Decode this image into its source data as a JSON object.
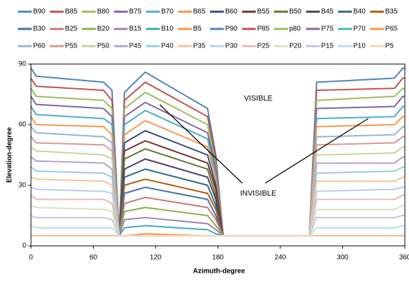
{
  "chart_data": {
    "type": "line",
    "x_label": "Azimuth-degree",
    "y_label": "Elevation-degree",
    "annotations": [
      "VISIBLE",
      "INVISIBLE"
    ],
    "xlim": [
      0,
      360
    ],
    "ylim": [
      0,
      90
    ],
    "xticks": [
      0,
      60,
      120,
      180,
      240,
      300,
      360
    ],
    "yticks": [
      0,
      30,
      60,
      90
    ],
    "x": [
      0,
      5,
      70,
      78,
      85,
      90,
      110,
      170,
      178,
      185,
      268,
      275,
      350,
      358,
      360
    ],
    "series": [
      {
        "name": "B90",
        "color": "#4F81BD",
        "values": [
          5,
          5,
          5,
          5,
          5,
          76,
          86,
          68,
          45,
          5,
          5,
          5,
          5,
          5,
          5
        ]
      },
      {
        "name": "B85",
        "color": "#C0504D",
        "values": [
          5,
          5,
          5,
          5,
          5,
          72,
          81,
          64,
          43,
          5,
          5,
          5,
          5,
          5,
          5
        ]
      },
      {
        "name": "B80",
        "color": "#9BBB59",
        "values": [
          5,
          5,
          5,
          5,
          5,
          68,
          76,
          60,
          40,
          5,
          5,
          5,
          5,
          5,
          5
        ]
      },
      {
        "name": "B75",
        "color": "#8064A2",
        "values": [
          5,
          5,
          5,
          5,
          5,
          64,
          71,
          56,
          38,
          5,
          5,
          5,
          5,
          5,
          5
        ]
      },
      {
        "name": "B70",
        "color": "#4BACC6",
        "values": [
          5,
          5,
          5,
          5,
          5,
          60,
          67,
          53,
          35,
          5,
          5,
          5,
          5,
          5,
          5
        ]
      },
      {
        "name": "B65",
        "color": "#F79646",
        "values": [
          5,
          5,
          5,
          5,
          5,
          55,
          62,
          49,
          33,
          5,
          5,
          5,
          5,
          5,
          5
        ]
      },
      {
        "name": "B60",
        "color": "#2C4D75",
        "values": [
          5,
          5,
          5,
          5,
          5,
          51,
          57,
          45,
          30,
          5,
          5,
          5,
          5,
          5,
          5
        ]
      },
      {
        "name": "B55",
        "color": "#772C2A",
        "values": [
          5,
          5,
          5,
          5,
          5,
          47,
          52,
          41,
          28,
          5,
          5,
          5,
          5,
          5,
          5
        ]
      },
      {
        "name": "B50",
        "color": "#5F7530",
        "values": [
          5,
          5,
          5,
          5,
          5,
          43,
          48,
          38,
          25,
          5,
          5,
          5,
          5,
          5,
          5
        ]
      },
      {
        "name": "B45",
        "color": "#4D3B62",
        "values": [
          5,
          5,
          5,
          5,
          5,
          38,
          43,
          34,
          23,
          5,
          5,
          5,
          5,
          5,
          5
        ]
      },
      {
        "name": "B40",
        "color": "#276A7C",
        "values": [
          5,
          5,
          5,
          5,
          5,
          34,
          38,
          30,
          20,
          5,
          5,
          5,
          5,
          5,
          5
        ]
      },
      {
        "name": "B35",
        "color": "#B65708",
        "values": [
          5,
          5,
          5,
          5,
          5,
          30,
          33,
          26,
          18,
          5,
          5,
          5,
          5,
          5,
          5
        ]
      },
      {
        "name": "B30",
        "color": "#3F6FA8",
        "values": [
          5,
          5,
          5,
          5,
          5,
          26,
          29,
          23,
          15,
          5,
          5,
          5,
          5,
          5,
          5
        ]
      },
      {
        "name": "B25",
        "color": "#CD7371",
        "values": [
          5,
          5,
          5,
          5,
          5,
          21,
          24,
          19,
          13,
          5,
          5,
          5,
          5,
          5,
          5
        ]
      },
      {
        "name": "B20",
        "color": "#8BAE4A",
        "values": [
          5,
          5,
          5,
          5,
          5,
          17,
          19,
          15,
          10,
          5,
          5,
          5,
          5,
          5,
          5
        ]
      },
      {
        "name": "B15",
        "color": "#9983B5",
        "values": [
          5,
          5,
          5,
          5,
          5,
          13,
          14,
          11,
          8,
          5,
          5,
          5,
          5,
          5,
          5
        ]
      },
      {
        "name": "B10",
        "color": "#3FA6BE",
        "values": [
          5,
          5,
          5,
          5,
          5,
          9,
          10,
          8,
          6,
          5,
          5,
          5,
          5,
          5,
          5
        ]
      },
      {
        "name": "B5",
        "color": "#F79646",
        "values": [
          5,
          5,
          5,
          5,
          5,
          5,
          6,
          5,
          5,
          5,
          5,
          5,
          5,
          5,
          5
        ]
      },
      {
        "name": "P90",
        "color": "#4F81BD",
        "values": [
          88,
          84,
          81,
          77,
          5,
          5,
          5,
          5,
          5,
          5,
          5,
          81,
          83,
          88,
          88
        ]
      },
      {
        "name": "P85",
        "color": "#C0504D",
        "values": [
          83,
          79,
          77,
          72,
          5,
          5,
          5,
          5,
          5,
          5,
          5,
          77,
          78,
          83,
          83
        ]
      },
      {
        "name": "p80",
        "color": "#9BBB59",
        "values": [
          78,
          74,
          72,
          68,
          5,
          5,
          5,
          5,
          5,
          5,
          5,
          72,
          74,
          78,
          78
        ]
      },
      {
        "name": "P75",
        "color": "#8064A2",
        "values": [
          74,
          70,
          68,
          64,
          5,
          5,
          5,
          5,
          5,
          5,
          5,
          68,
          69,
          74,
          74
        ]
      },
      {
        "name": "P70",
        "color": "#4BACC6",
        "values": [
          69,
          65,
          63,
          60,
          5,
          5,
          5,
          5,
          5,
          5,
          5,
          63,
          64,
          69,
          69
        ]
      },
      {
        "name": "P65",
        "color": "#F79646",
        "values": [
          64,
          60,
          59,
          55,
          5,
          5,
          5,
          5,
          5,
          5,
          5,
          59,
          60,
          64,
          64
        ]
      },
      {
        "name": "P60",
        "color": "#95B3D7",
        "values": [
          59,
          56,
          54,
          51,
          5,
          5,
          5,
          5,
          5,
          5,
          5,
          54,
          55,
          59,
          59
        ]
      },
      {
        "name": "P55",
        "color": "#D99694",
        "values": [
          54,
          51,
          50,
          47,
          5,
          5,
          5,
          5,
          5,
          5,
          5,
          50,
          51,
          54,
          54
        ]
      },
      {
        "name": "P50",
        "color": "#C3D69B",
        "values": [
          49,
          47,
          45,
          43,
          5,
          5,
          5,
          5,
          5,
          5,
          5,
          45,
          46,
          49,
          49
        ]
      },
      {
        "name": "P45",
        "color": "#B3A2C7",
        "values": [
          44,
          42,
          41,
          38,
          5,
          5,
          5,
          5,
          5,
          5,
          5,
          41,
          41,
          44,
          44
        ]
      },
      {
        "name": "P40",
        "color": "#93CDDD",
        "values": [
          39,
          37,
          36,
          34,
          5,
          5,
          5,
          5,
          5,
          5,
          5,
          36,
          37,
          39,
          39
        ]
      },
      {
        "name": "P35",
        "color": "#FAC090",
        "values": [
          34,
          33,
          32,
          30,
          5,
          5,
          5,
          5,
          5,
          5,
          5,
          32,
          32,
          34,
          34
        ]
      },
      {
        "name": "P30",
        "color": "#B9CDE5",
        "values": [
          29,
          28,
          27,
          26,
          5,
          5,
          5,
          5,
          5,
          5,
          5,
          27,
          28,
          29,
          29
        ]
      },
      {
        "name": "P25",
        "color": "#E6B9B8",
        "values": [
          25,
          23,
          23,
          21,
          5,
          5,
          5,
          5,
          5,
          5,
          5,
          23,
          23,
          25,
          25
        ]
      },
      {
        "name": "P20",
        "color": "#D7E4BD",
        "values": [
          20,
          19,
          18,
          17,
          5,
          5,
          5,
          5,
          5,
          5,
          5,
          18,
          18,
          20,
          20
        ]
      },
      {
        "name": "P15",
        "color": "#CCC1DA",
        "values": [
          15,
          14,
          14,
          13,
          5,
          5,
          5,
          5,
          5,
          5,
          5,
          14,
          14,
          15,
          15
        ]
      },
      {
        "name": "P10",
        "color": "#B7DEE8",
        "values": [
          10,
          9,
          9,
          9,
          5,
          5,
          5,
          5,
          5,
          5,
          5,
          9,
          9,
          10,
          10
        ]
      },
      {
        "name": "P5",
        "color": "#FCD5B5",
        "values": [
          5,
          5,
          5,
          5,
          5,
          5,
          5,
          5,
          5,
          5,
          5,
          5,
          5,
          5,
          5
        ]
      }
    ]
  }
}
